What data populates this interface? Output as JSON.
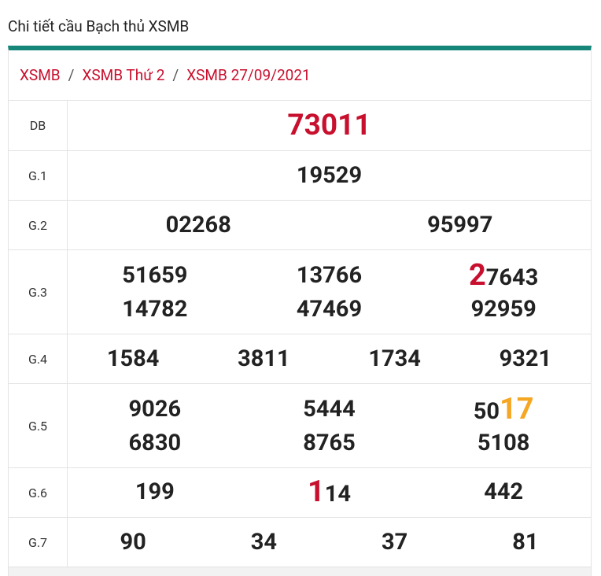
{
  "header": {
    "title": "Chi tiết cầu Bạch thủ XSMB"
  },
  "breadcrumb": {
    "items": [
      "XSMB",
      "XSMB Thứ 2",
      "XSMB 27/09/2021"
    ],
    "separator": "/"
  },
  "table": {
    "rows": [
      {
        "label": "DB",
        "numbers": [
          "73011"
        ],
        "color": "#c8102e"
      },
      {
        "label": "G.1",
        "numbers": [
          "19529"
        ]
      },
      {
        "label": "G.2",
        "numbers": [
          "02268",
          "95997"
        ]
      },
      {
        "label": "G.3",
        "numbers": [
          "51659",
          "13766",
          [
            {
              "text": "2",
              "color": "#c8102e"
            },
            {
              "text": "7643"
            }
          ],
          "14782",
          "47469",
          "92959"
        ]
      },
      {
        "label": "G.4",
        "numbers": [
          "1584",
          "3811",
          "1734",
          "9321"
        ]
      },
      {
        "label": "G.5",
        "numbers": [
          "9026",
          "5444",
          [
            {
              "text": "50"
            },
            {
              "text": "17",
              "color": "#f5a623"
            }
          ],
          "6830",
          "8765",
          "5108"
        ]
      },
      {
        "label": "G.6",
        "numbers": [
          "199",
          [
            {
              "text": "1",
              "color": "#c8102e"
            },
            {
              "text": "14"
            }
          ],
          "442"
        ]
      },
      {
        "label": "G.7",
        "numbers": [
          "90",
          "34",
          "37",
          "81"
        ]
      }
    ]
  }
}
